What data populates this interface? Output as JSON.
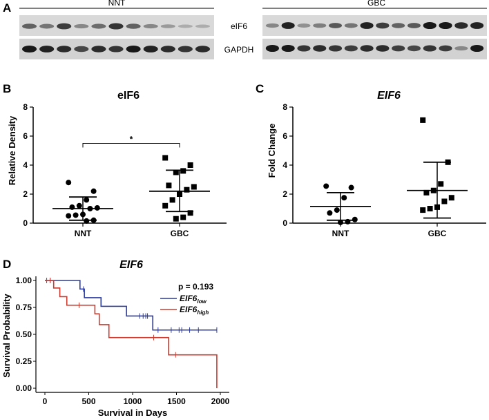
{
  "panel_labels": {
    "a": "A",
    "b": "B",
    "c": "C",
    "d": "D"
  },
  "blot": {
    "group_left": "NNT",
    "group_right": "GBC",
    "band_top": "eIF6",
    "band_bottom": "GAPDH",
    "eif6_left_intensities": [
      0.55,
      0.45,
      0.75,
      0.35,
      0.5,
      0.8,
      0.55,
      0.35,
      0.25,
      0.15,
      0.15
    ],
    "eif6_right_intensities": [
      0.35,
      0.9,
      0.3,
      0.4,
      0.6,
      0.45,
      0.9,
      0.75,
      0.55,
      0.6,
      0.95,
      0.95,
      0.85,
      0.9
    ],
    "gapdh_left_intensities": [
      0.95,
      0.9,
      0.85,
      0.7,
      0.85,
      0.8,
      0.95,
      0.9,
      0.85,
      0.8,
      0.85
    ],
    "gapdh_right_intensities": [
      0.95,
      0.95,
      0.8,
      0.85,
      0.8,
      0.75,
      0.85,
      0.85,
      0.75,
      0.7,
      0.8,
      0.75,
      0.35,
      0.95
    ]
  },
  "chart_data": [
    {
      "type": "scatter",
      "title": "eIF6",
      "title_italic": false,
      "ylabel": "Relative Density",
      "ylim": [
        0,
        8
      ],
      "yticks": [
        "0",
        "2",
        "4",
        "6",
        "8"
      ],
      "categories": [
        "NNT",
        "GBC"
      ],
      "significance": "*",
      "series": [
        {
          "category": "NNT",
          "marker": "circle",
          "mean": 1.0,
          "sd_low": 0.2,
          "sd_high": 1.8,
          "values": [
            2.8,
            2.2,
            1.6,
            1.2,
            1.1,
            1.05,
            1.0,
            0.6,
            0.55,
            0.5,
            0.2,
            0.15
          ]
        },
        {
          "category": "GBC",
          "marker": "square",
          "mean": 2.2,
          "sd_low": 0.8,
          "sd_high": 3.65,
          "values": [
            4.5,
            4.0,
            3.6,
            3.5,
            2.6,
            2.5,
            2.3,
            2.0,
            1.6,
            1.2,
            0.7,
            0.4,
            0.3
          ]
        }
      ]
    },
    {
      "type": "scatter",
      "title": "EIF6",
      "title_italic": true,
      "ylabel": "Fold Change",
      "ylim": [
        0,
        8
      ],
      "yticks": [
        "0",
        "2",
        "4",
        "6",
        "8"
      ],
      "categories": [
        "NNT",
        "GBC"
      ],
      "series": [
        {
          "category": "NNT",
          "marker": "circle",
          "mean": 1.15,
          "sd_low": 0.2,
          "sd_high": 2.1,
          "values": [
            2.55,
            2.45,
            1.75,
            0.9,
            0.7,
            0.25,
            0.1,
            0.05
          ]
        },
        {
          "category": "GBC",
          "marker": "square",
          "mean": 2.25,
          "sd_low": 0.35,
          "sd_high": 4.2,
          "values": [
            7.1,
            4.2,
            2.7,
            2.25,
            2.1,
            1.75,
            1.5,
            1.1,
            1.0,
            0.9
          ]
        }
      ]
    },
    {
      "type": "line",
      "step": true,
      "title": "EIF6",
      "title_italic": true,
      "xlabel": "Survival in Days",
      "ylabel": "Survival Probability",
      "xlim": [
        0,
        2000
      ],
      "ylim": [
        0,
        1
      ],
      "xticks": [
        "0",
        "500",
        "1000",
        "1500",
        "2000"
      ],
      "yticks": [
        "0.00",
        "0.25",
        "0.50",
        "0.75",
        "1.00"
      ],
      "annotation": "p = 0.193",
      "series": [
        {
          "name_base": "EIF6",
          "name_sub": "low",
          "color": "#2b3a9e",
          "x": [
            0,
            400,
            450,
            640,
            930,
            1230,
            1960
          ],
          "y": [
            1.0,
            0.92,
            0.84,
            0.76,
            0.67,
            0.54,
            0.54
          ],
          "censor_x": [
            20,
            60,
            440,
            1080,
            1120,
            1150,
            1170,
            1290,
            1440,
            1530,
            1560,
            1650,
            1750,
            1960
          ],
          "censor_y": [
            1.0,
            1.0,
            0.92,
            0.67,
            0.67,
            0.67,
            0.67,
            0.54,
            0.54,
            0.54,
            0.54,
            0.54,
            0.54,
            0.54
          ]
        },
        {
          "name_base": "EIF6",
          "name_sub": "high",
          "color": "#cc3a2e",
          "x": [
            0,
            100,
            170,
            250,
            570,
            620,
            730,
            1410,
            1960,
            1960
          ],
          "y": [
            1.0,
            0.93,
            0.85,
            0.77,
            0.69,
            0.59,
            0.47,
            0.31,
            0.31,
            0.0
          ],
          "censor_x": [
            20,
            60,
            390,
            1240,
            1490
          ],
          "censor_y": [
            1.0,
            1.0,
            0.77,
            0.47,
            0.31
          ]
        }
      ]
    }
  ]
}
